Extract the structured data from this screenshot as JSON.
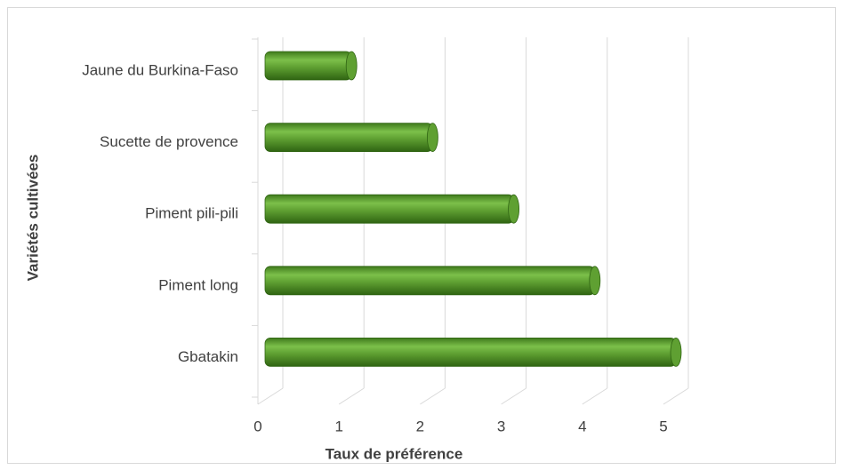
{
  "chart_data": {
    "type": "bar",
    "orientation": "horizontal",
    "categories": [
      "Jaune du Burkina-Faso",
      "Sucette de provence",
      "Piment pili-pili",
      "Piment long",
      "Gbatakin"
    ],
    "values": [
      1,
      2,
      3,
      4,
      5
    ],
    "color": "#5fa032",
    "xlabel": "Taux de préférence",
    "ylabel": "Variétés cultivées",
    "xlim": [
      0,
      5
    ],
    "xticks": [
      0,
      1,
      2,
      3,
      4,
      5
    ],
    "grid": true
  }
}
